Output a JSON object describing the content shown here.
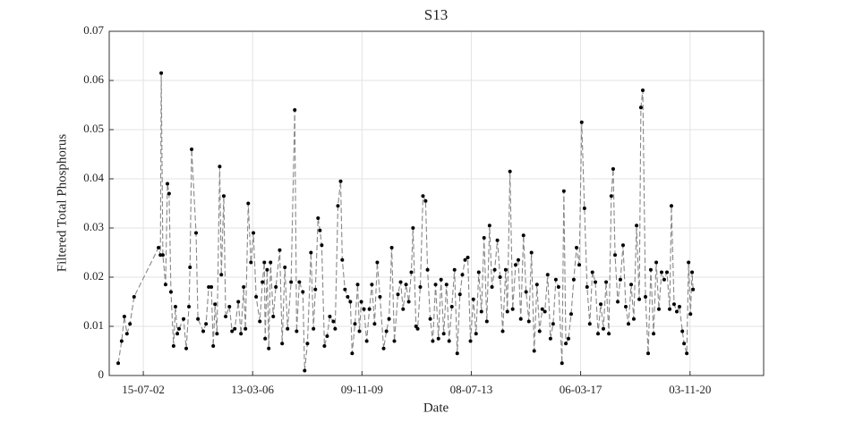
{
  "chart_data": {
    "type": "line",
    "title": "S13",
    "x_label": "Date",
    "y_label": "Filtered Total Phosphorus",
    "xlim": [
      "2001-05-24",
      "2023-04-22"
    ],
    "xticks": [
      {
        "value": "2002-07-15",
        "label": "15-07-02"
      },
      {
        "value": "2006-03-13",
        "label": "13-03-06"
      },
      {
        "value": "2009-11-09",
        "label": "09-11-09"
      },
      {
        "value": "2013-07-08",
        "label": "08-07-13"
      },
      {
        "value": "2017-03-06",
        "label": "06-03-17"
      },
      {
        "value": "2020-11-03",
        "label": "03-11-20"
      }
    ],
    "ylim": [
      0,
      0.07
    ],
    "yticks": [
      0,
      0.01,
      0.02,
      0.03,
      0.04,
      0.05,
      0.06,
      0.07
    ],
    "grid": true,
    "color": "#000000",
    "line_color": "#888888",
    "line_style": "dashed",
    "x": [
      "2001-09-11",
      "2001-10-23",
      "2001-11-25",
      "2001-12-27",
      "2002-02-02",
      "2002-03-24",
      "2003-01-17",
      "2003-02-09",
      "2003-02-19",
      "2003-03-11",
      "2003-04-13",
      "2003-05-06",
      "2003-05-26",
      "2003-06-18",
      "2003-07-20",
      "2003-08-12",
      "2003-09-04",
      "2003-09-25",
      "2003-11-19",
      "2003-12-22",
      "2004-01-24",
      "2004-02-06",
      "2004-02-26",
      "2004-04-20",
      "2004-05-13",
      "2004-07-17",
      "2004-08-20",
      "2004-09-22",
      "2004-10-24",
      "2004-11-16",
      "2004-12-08",
      "2005-01-01",
      "2005-02-03",
      "2005-02-23",
      "2005-03-25",
      "2005-04-17",
      "2005-06-02",
      "2005-07-04",
      "2005-08-06",
      "2005-09-19",
      "2005-10-21",
      "2005-11-23",
      "2005-12-15",
      "2006-01-18",
      "2006-02-20",
      "2006-03-22",
      "2006-04-25",
      "2006-06-09",
      "2006-07-11",
      "2006-08-03",
      "2006-08-13",
      "2006-09-06",
      "2006-09-26",
      "2006-10-18",
      "2006-11-20",
      "2006-12-22",
      "2007-02-07",
      "2007-03-09",
      "2007-04-11",
      "2007-05-14",
      "2007-06-26",
      "2007-08-10",
      "2007-09-02",
      "2007-10-05",
      "2007-11-17",
      "2007-12-09",
      "2008-01-12",
      "2008-02-24",
      "2008-03-26",
      "2008-04-18",
      "2008-05-21",
      "2008-06-13",
      "2008-07-05",
      "2008-08-07",
      "2008-09-09",
      "2008-10-12",
      "2008-11-24",
      "2008-12-16",
      "2009-01-19",
      "2009-02-21",
      "2009-03-13",
      "2009-04-15",
      "2009-05-18",
      "2009-06-20",
      "2009-07-12",
      "2009-08-15",
      "2009-09-17",
      "2009-10-09",
      "2009-11-01",
      "2009-12-03",
      "2010-01-06",
      "2010-02-08",
      "2010-03-10",
      "2010-04-12",
      "2010-05-15",
      "2010-06-17",
      "2010-08-01",
      "2010-09-04",
      "2010-10-06",
      "2010-11-08",
      "2010-12-10",
      "2011-01-23",
      "2011-02-25",
      "2011-03-27",
      "2011-05-02",
      "2011-06-04",
      "2011-07-06",
      "2011-07-26",
      "2011-09-01",
      "2011-09-21",
      "2011-10-23",
      "2011-11-25",
      "2011-12-27",
      "2012-01-20",
      "2012-02-22",
      "2012-03-24",
      "2012-04-27",
      "2012-06-01",
      "2012-07-03",
      "2012-08-05",
      "2012-09-08",
      "2012-10-10",
      "2012-11-12",
      "2012-12-15",
      "2013-01-17",
      "2013-02-19",
      "2013-03-21",
      "2013-04-23",
      "2013-05-26",
      "2013-06-28",
      "2013-08-02",
      "2013-09-04",
      "2013-10-07",
      "2013-11-09",
      "2013-12-11",
      "2014-01-14",
      "2014-02-16",
      "2014-03-18",
      "2014-04-20",
      "2014-05-23",
      "2014-06-25",
      "2014-07-27",
      "2014-09-02",
      "2014-09-22",
      "2014-10-24",
      "2014-11-26",
      "2015-01-01",
      "2015-02-03",
      "2015-03-05",
      "2015-04-07",
      "2015-05-09",
      "2015-06-12",
      "2015-07-14",
      "2015-08-16",
      "2015-09-19",
      "2015-10-21",
      "2015-11-23",
      "2015-12-25",
      "2016-01-28",
      "2016-03-02",
      "2016-04-04",
      "2016-05-07",
      "2016-06-09",
      "2016-07-21",
      "2016-08-13",
      "2016-09-06",
      "2016-10-08",
      "2016-11-10",
      "2016-12-12",
      "2017-01-15",
      "2017-02-17",
      "2017-03-19",
      "2017-04-22",
      "2017-05-24",
      "2017-06-26",
      "2017-07-28",
      "2017-09-02",
      "2017-10-05",
      "2017-11-07",
      "2017-12-09",
      "2018-01-12",
      "2018-02-14",
      "2018-03-16",
      "2018-04-08",
      "2018-05-01",
      "2018-06-03",
      "2018-07-05",
      "2018-08-07",
      "2018-09-09",
      "2018-10-12",
      "2018-11-14",
      "2018-12-16",
      "2019-01-19",
      "2019-02-21",
      "2019-03-13",
      "2019-04-05",
      "2019-05-08",
      "2019-06-10",
      "2019-07-12",
      "2019-08-15",
      "2019-09-17",
      "2019-10-19",
      "2019-11-21",
      "2019-12-23",
      "2020-01-26",
      "2020-02-28",
      "2020-03-20",
      "2020-04-22",
      "2020-05-25",
      "2020-06-27",
      "2020-08-01",
      "2020-08-22",
      "2020-09-24",
      "2020-10-16",
      "2020-11-08",
      "2020-11-28",
      "2020-12-10"
    ],
    "values": [
      0.0025,
      0.007,
      0.012,
      0.0085,
      0.0105,
      0.016,
      0.026,
      0.0245,
      0.0615,
      0.0245,
      0.0185,
      0.039,
      0.037,
      0.017,
      0.006,
      0.014,
      0.0085,
      0.0095,
      0.0115,
      0.0055,
      0.014,
      0.022,
      0.046,
      0.029,
      0.0115,
      0.009,
      0.0105,
      0.018,
      0.018,
      0.006,
      0.0145,
      0.0085,
      0.0425,
      0.0205,
      0.0365,
      0.012,
      0.014,
      0.009,
      0.0095,
      0.015,
      0.0085,
      0.018,
      0.0095,
      0.035,
      0.023,
      0.029,
      0.016,
      0.011,
      0.019,
      0.023,
      0.0075,
      0.0215,
      0.0055,
      0.023,
      0.012,
      0.018,
      0.0255,
      0.0065,
      0.022,
      0.0095,
      0.019,
      0.054,
      0.009,
      0.019,
      0.017,
      0.001,
      0.0065,
      0.025,
      0.0095,
      0.0175,
      0.032,
      0.0295,
      0.0265,
      0.006,
      0.008,
      0.012,
      0.011,
      0.0095,
      0.0345,
      0.0395,
      0.0235,
      0.0175,
      0.016,
      0.015,
      0.0045,
      0.0105,
      0.0185,
      0.009,
      0.015,
      0.0135,
      0.007,
      0.0135,
      0.0185,
      0.0105,
      0.023,
      0.016,
      0.0055,
      0.009,
      0.0115,
      0.026,
      0.007,
      0.0165,
      0.019,
      0.0135,
      0.0185,
      0.015,
      0.021,
      0.03,
      0.01,
      0.0095,
      0.018,
      0.0365,
      0.0355,
      0.0215,
      0.0115,
      0.007,
      0.0185,
      0.0075,
      0.0195,
      0.0085,
      0.0185,
      0.007,
      0.014,
      0.0215,
      0.0045,
      0.0165,
      0.0205,
      0.0235,
      0.024,
      0.007,
      0.0155,
      0.0085,
      0.021,
      0.013,
      0.028,
      0.011,
      0.0305,
      0.018,
      0.0215,
      0.0275,
      0.02,
      0.009,
      0.0215,
      0.013,
      0.0415,
      0.0135,
      0.0225,
      0.0235,
      0.0115,
      0.0285,
      0.017,
      0.011,
      0.025,
      0.005,
      0.0185,
      0.009,
      0.0135,
      0.013,
      0.0205,
      0.0075,
      0.0105,
      0.0195,
      0.018,
      0.0025,
      0.0375,
      0.0065,
      0.0075,
      0.0125,
      0.0195,
      0.026,
      0.0225,
      0.0515,
      0.034,
      0.018,
      0.0105,
      0.021,
      0.019,
      0.0085,
      0.0145,
      0.0095,
      0.019,
      0.0085,
      0.0365,
      0.042,
      0.0245,
      0.015,
      0.0195,
      0.0265,
      0.014,
      0.0105,
      0.0185,
      0.0115,
      0.0305,
      0.0155,
      0.0545,
      0.058,
      0.016,
      0.0045,
      0.0215,
      0.0085,
      0.023,
      0.0135,
      0.021,
      0.0195,
      0.021,
      0.0135,
      0.0345,
      0.0145,
      0.013,
      0.014,
      0.009,
      0.0065,
      0.0045,
      0.023,
      0.0125,
      0.021,
      0.0175
    ]
  }
}
